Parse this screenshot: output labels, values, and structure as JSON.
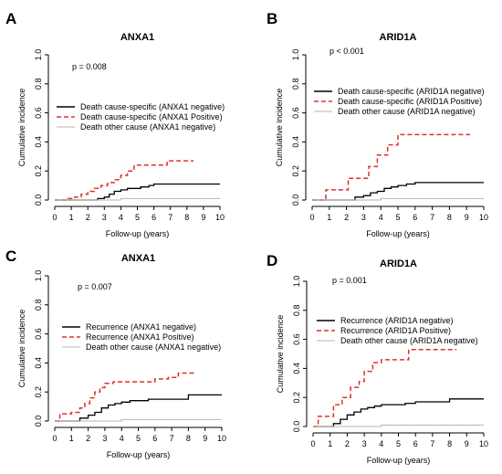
{
  "colors": {
    "negative": "#000000",
    "positive": "#e0302a",
    "other": "#b3b3b3",
    "axis": "#000000"
  },
  "chart_data": [
    {
      "panel_letter": "A",
      "type": "line",
      "title": "ANXA1",
      "xlabel": "Follow-up (years)",
      "ylabel": "Cumulative incidence",
      "xlim": [
        0,
        10
      ],
      "ylim": [
        0,
        1
      ],
      "xticks": [
        "0",
        "1",
        "2",
        "3",
        "4",
        "5",
        "6",
        "7",
        "8",
        "9",
        "10"
      ],
      "yticks": [
        "0.0",
        "0.2",
        "0.4",
        "0.6",
        "0.8",
        "1.0"
      ],
      "pvalue": "p =  0.008",
      "legend_position": "middle-left",
      "series": [
        {
          "name": "Death cause-specific (ANXA1 negative)",
          "style": "negative",
          "x": [
            0.0,
            2.2,
            2.6,
            3.0,
            3.3,
            3.6,
            4.0,
            4.4,
            4.8,
            5.2,
            5.7,
            6.0,
            6.5,
            10.0
          ],
          "y": [
            0.0,
            0.0,
            0.01,
            0.02,
            0.04,
            0.06,
            0.07,
            0.08,
            0.08,
            0.09,
            0.1,
            0.11,
            0.11,
            0.11
          ]
        },
        {
          "name": "Death cause-specific (ANXA1 Positive)",
          "style": "positive",
          "x": [
            0.0,
            0.8,
            1.2,
            1.6,
            2.0,
            2.4,
            2.8,
            3.2,
            3.6,
            4.0,
            4.4,
            4.8,
            5.4,
            6.4,
            6.8,
            8.4
          ],
          "y": [
            0.0,
            0.01,
            0.02,
            0.04,
            0.06,
            0.08,
            0.1,
            0.12,
            0.14,
            0.17,
            0.2,
            0.24,
            0.24,
            0.24,
            0.27,
            0.27
          ]
        },
        {
          "name": "Death other cause (ANXA1 negative)",
          "style": "other",
          "x": [
            0.0,
            4.0,
            10.0
          ],
          "y": [
            0.0,
            0.01,
            0.01
          ]
        }
      ]
    },
    {
      "panel_letter": "B",
      "type": "line",
      "title": "ARID1A",
      "xlabel": "Follow-up (years)",
      "ylabel": "Cumulative incidence",
      "xlim": [
        0,
        10
      ],
      "ylim": [
        0,
        1
      ],
      "xticks": [
        "0",
        "1",
        "2",
        "3",
        "4",
        "5",
        "6",
        "7",
        "8",
        "9",
        "10"
      ],
      "yticks": [
        "0.0",
        "0.2",
        "0.4",
        "0.6",
        "0.8",
        "1.0"
      ],
      "pvalue": "p < 0.001",
      "legend_position": "middle-left",
      "series": [
        {
          "name": "Death cause-specific (ARID1A negative)",
          "style": "negative",
          "x": [
            0.0,
            2.0,
            2.5,
            3.0,
            3.4,
            3.8,
            4.2,
            4.6,
            5.0,
            5.5,
            6.0,
            6.5,
            10.0
          ],
          "y": [
            0.0,
            0.0,
            0.02,
            0.03,
            0.05,
            0.06,
            0.08,
            0.09,
            0.1,
            0.11,
            0.12,
            0.12,
            0.12
          ]
        },
        {
          "name": "Death cause-specific (ARID1A Positive)",
          "style": "positive",
          "x": [
            0.0,
            0.8,
            2.1,
            3.3,
            3.8,
            4.4,
            5.0,
            5.9,
            9.2
          ],
          "y": [
            0.0,
            0.07,
            0.15,
            0.23,
            0.31,
            0.38,
            0.45,
            0.45,
            0.45
          ]
        },
        {
          "name": "Death other cause (ARID1A negative)",
          "style": "other",
          "x": [
            0.0,
            4.0,
            10.0
          ],
          "y": [
            0.0,
            0.01,
            0.01
          ]
        }
      ]
    },
    {
      "panel_letter": "C",
      "type": "line",
      "title": "ANXA1",
      "xlabel": "Follow-up (years)",
      "ylabel": "Cumulative incidence",
      "xlim": [
        0,
        10
      ],
      "ylim": [
        0,
        1
      ],
      "xticks": [
        "0",
        "1",
        "2",
        "3",
        "4",
        "5",
        "6",
        "7",
        "8",
        "9",
        "10"
      ],
      "yticks": [
        "0.0",
        "0.2",
        "0.4",
        "0.6",
        "0.8",
        "1.0"
      ],
      "pvalue": "p =  0.007",
      "legend_position": "middle-left",
      "series": [
        {
          "name": "Recurrence (ANXA1 negative)",
          "style": "negative",
          "x": [
            0.0,
            1.0,
            1.5,
            2.0,
            2.4,
            2.8,
            3.2,
            3.6,
            4.0,
            4.5,
            5.0,
            5.6,
            6.2,
            7.0,
            8.0,
            10.0
          ],
          "y": [
            0.0,
            0.0,
            0.02,
            0.04,
            0.06,
            0.09,
            0.11,
            0.12,
            0.13,
            0.14,
            0.14,
            0.15,
            0.15,
            0.15,
            0.18,
            0.18
          ]
        },
        {
          "name": "Recurrence (ANXA1 Positive)",
          "style": "positive",
          "x": [
            0.0,
            0.3,
            1.0,
            1.5,
            1.8,
            2.1,
            2.4,
            2.7,
            3.0,
            3.5,
            4.5,
            5.0,
            6.0,
            6.8,
            7.4,
            8.4
          ],
          "y": [
            0.0,
            0.05,
            0.06,
            0.09,
            0.12,
            0.16,
            0.2,
            0.23,
            0.26,
            0.27,
            0.27,
            0.27,
            0.29,
            0.3,
            0.33,
            0.33
          ]
        },
        {
          "name": "Death other cause (ANXA1 negative)",
          "style": "other",
          "x": [
            0.0,
            4.0,
            10.0
          ],
          "y": [
            0.0,
            0.01,
            0.01
          ]
        }
      ]
    },
    {
      "panel_letter": "D",
      "type": "line",
      "title": "ARID1A",
      "xlabel": "Follow-up (years)",
      "ylabel": "Cumulative incidence",
      "xlim": [
        0,
        10
      ],
      "ylim": [
        0,
        1
      ],
      "xticks": [
        "0",
        "1",
        "2",
        "3",
        "4",
        "5",
        "6",
        "7",
        "8",
        "9",
        "10"
      ],
      "yticks": [
        "0.0",
        "0.2",
        "0.4",
        "0.6",
        "0.8",
        "1.0"
      ],
      "pvalue": "p =  0.001",
      "legend_position": "middle-left",
      "series": [
        {
          "name": "Recurrence (ARID1A negative)",
          "style": "negative",
          "x": [
            0.0,
            0.8,
            1.2,
            1.6,
            2.0,
            2.4,
            2.8,
            3.2,
            3.6,
            4.0,
            4.6,
            5.4,
            6.0,
            7.0,
            8.0,
            10.0
          ],
          "y": [
            0.0,
            0.0,
            0.02,
            0.05,
            0.08,
            0.1,
            0.12,
            0.13,
            0.14,
            0.15,
            0.15,
            0.16,
            0.17,
            0.17,
            0.19,
            0.19
          ]
        },
        {
          "name": "Recurrence (ARID1A Positive)",
          "style": "positive",
          "x": [
            0.0,
            0.3,
            1.2,
            1.7,
            2.2,
            2.7,
            3.0,
            3.5,
            4.0,
            4.7,
            5.6,
            8.4
          ],
          "y": [
            0.0,
            0.07,
            0.15,
            0.2,
            0.27,
            0.31,
            0.38,
            0.44,
            0.46,
            0.46,
            0.53,
            0.53
          ]
        },
        {
          "name": "Death other cause (ARID1A negative)",
          "style": "other",
          "x": [
            0.0,
            4.0,
            10.0
          ],
          "y": [
            0.0,
            0.01,
            0.01
          ]
        }
      ]
    }
  ]
}
